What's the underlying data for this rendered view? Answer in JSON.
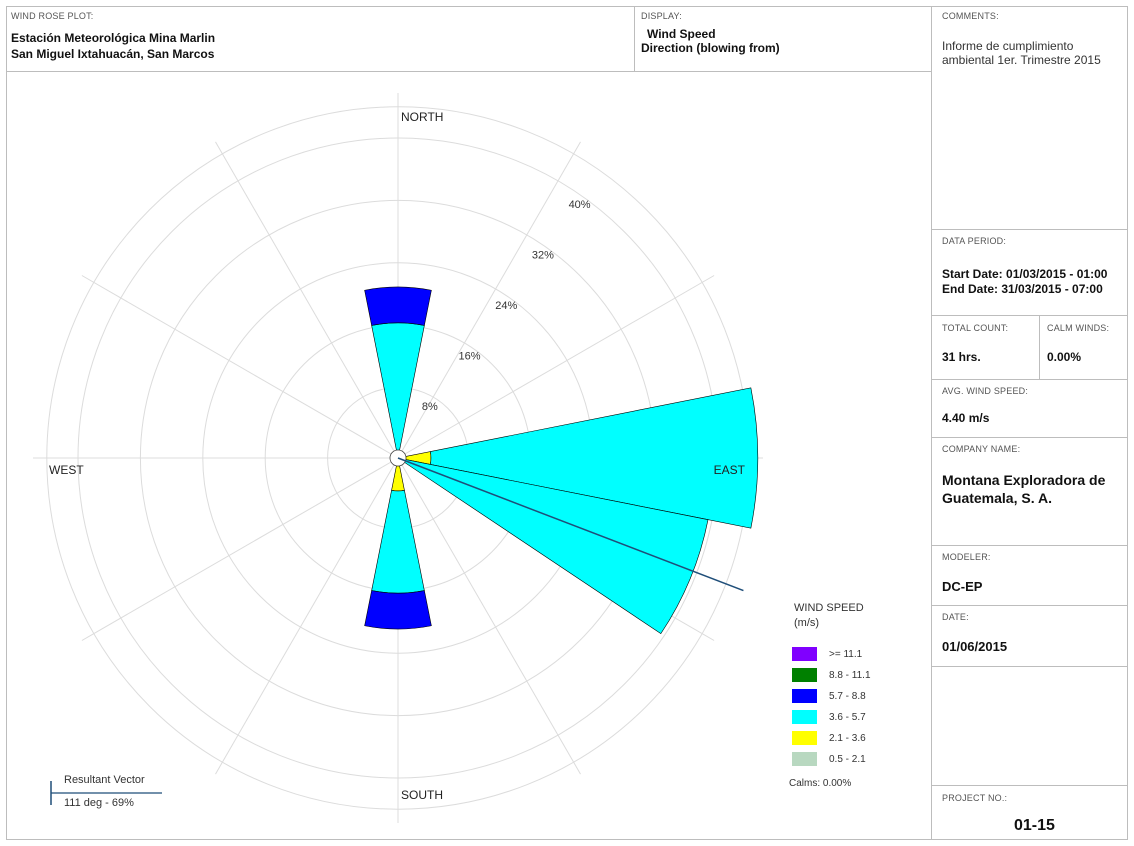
{
  "header": {
    "plot_label": "WIND ROSE PLOT:",
    "station_line1": "Estación Meteorológica Mina Marlin",
    "station_line2": "San Miguel Ixtahuacán, San Marcos",
    "display_label": "DISPLAY:",
    "display_line1": "Wind Speed",
    "display_line2": "Direction (blowing from)"
  },
  "sidebar": {
    "comments_label": "COMMENTS:",
    "comments_line1": "Informe de cumplimiento",
    "comments_line2": "ambiental 1er. Trimestre 2015",
    "data_period_label": "DATA PERIOD:",
    "start_date": "Start Date: 01/03/2015 - 01:00",
    "end_date": "End Date: 31/03/2015 - 07:00",
    "total_count_label": "TOTAL COUNT:",
    "total_count": "31 hrs.",
    "calm_winds_label": "CALM WINDS:",
    "calm_winds": "0.00%",
    "avg_speed_label": "AVG. WIND SPEED:",
    "avg_speed": "4.40 m/s",
    "company_label": "COMPANY NAME:",
    "company_line1": "Montana Exploradora de",
    "company_line2": "Guatemala, S. A.",
    "modeler_label": "MODELER:",
    "modeler": "DC-EP",
    "date_label": "DATE:",
    "date": "01/06/2015",
    "project_label": "PROJECT NO.:",
    "project": "01-15"
  },
  "legend": {
    "title_line1": "WIND SPEED",
    "title_line2": "(m/s)",
    "items": [
      {
        "label": ">= 11.1",
        "color": "#8000ff"
      },
      {
        "label": "8.8 - 11.1",
        "color": "#008000"
      },
      {
        "label": "5.7 - 8.8",
        "color": "#0000ff"
      },
      {
        "label": "3.6 - 5.7",
        "color": "#00ffff"
      },
      {
        "label": "2.1 - 3.6",
        "color": "#ffff00"
      },
      {
        "label": "0.5 - 2.1",
        "color": "#b8d8c0"
      }
    ],
    "calms": "Calms: 0.00%"
  },
  "resultant": {
    "title": "Resultant Vector",
    "value": "111 deg - 69%",
    "direction_deg": 111,
    "color": "#1f4e79"
  },
  "chart_data": {
    "type": "wind_rose",
    "directions": [
      "NORTH",
      "EAST",
      "SOUTH",
      "WEST"
    ],
    "ring_labels": [
      "8%",
      "16%",
      "24%",
      "32%",
      "40%"
    ],
    "ring_values": [
      8,
      16,
      24,
      32,
      40
    ],
    "sector_width_deg": 22.5,
    "sectors": [
      {
        "direction_deg": 0,
        "bins": [
          {
            "speed": "2.1 - 3.6",
            "to": 0
          },
          {
            "speed": "3.6 - 5.7",
            "to": 16.3
          },
          {
            "speed": "5.7 - 8.8",
            "to": 20.9
          }
        ]
      },
      {
        "direction_deg": 90,
        "bins": [
          {
            "speed": "2.1 - 3.6",
            "to": 3.2
          },
          {
            "speed": "3.6 - 5.7",
            "to": 45.1
          }
        ]
      },
      {
        "direction_deg": 112.5,
        "bins": [
          {
            "speed": "2.1 - 3.6",
            "to": 0
          },
          {
            "speed": "3.6 - 5.7",
            "to": 39.5
          }
        ]
      },
      {
        "direction_deg": 180,
        "bins": [
          {
            "speed": "2.1 - 3.6",
            "to": 3.2
          },
          {
            "speed": "3.6 - 5.7",
            "to": 16.3
          },
          {
            "speed": "5.7 - 8.8",
            "to": 20.9
          }
        ]
      }
    ],
    "colors": {
      "2.1 - 3.6": "#ffff00",
      "3.6 - 5.7": "#00ffff",
      "5.7 - 8.8": "#0000ff"
    }
  }
}
